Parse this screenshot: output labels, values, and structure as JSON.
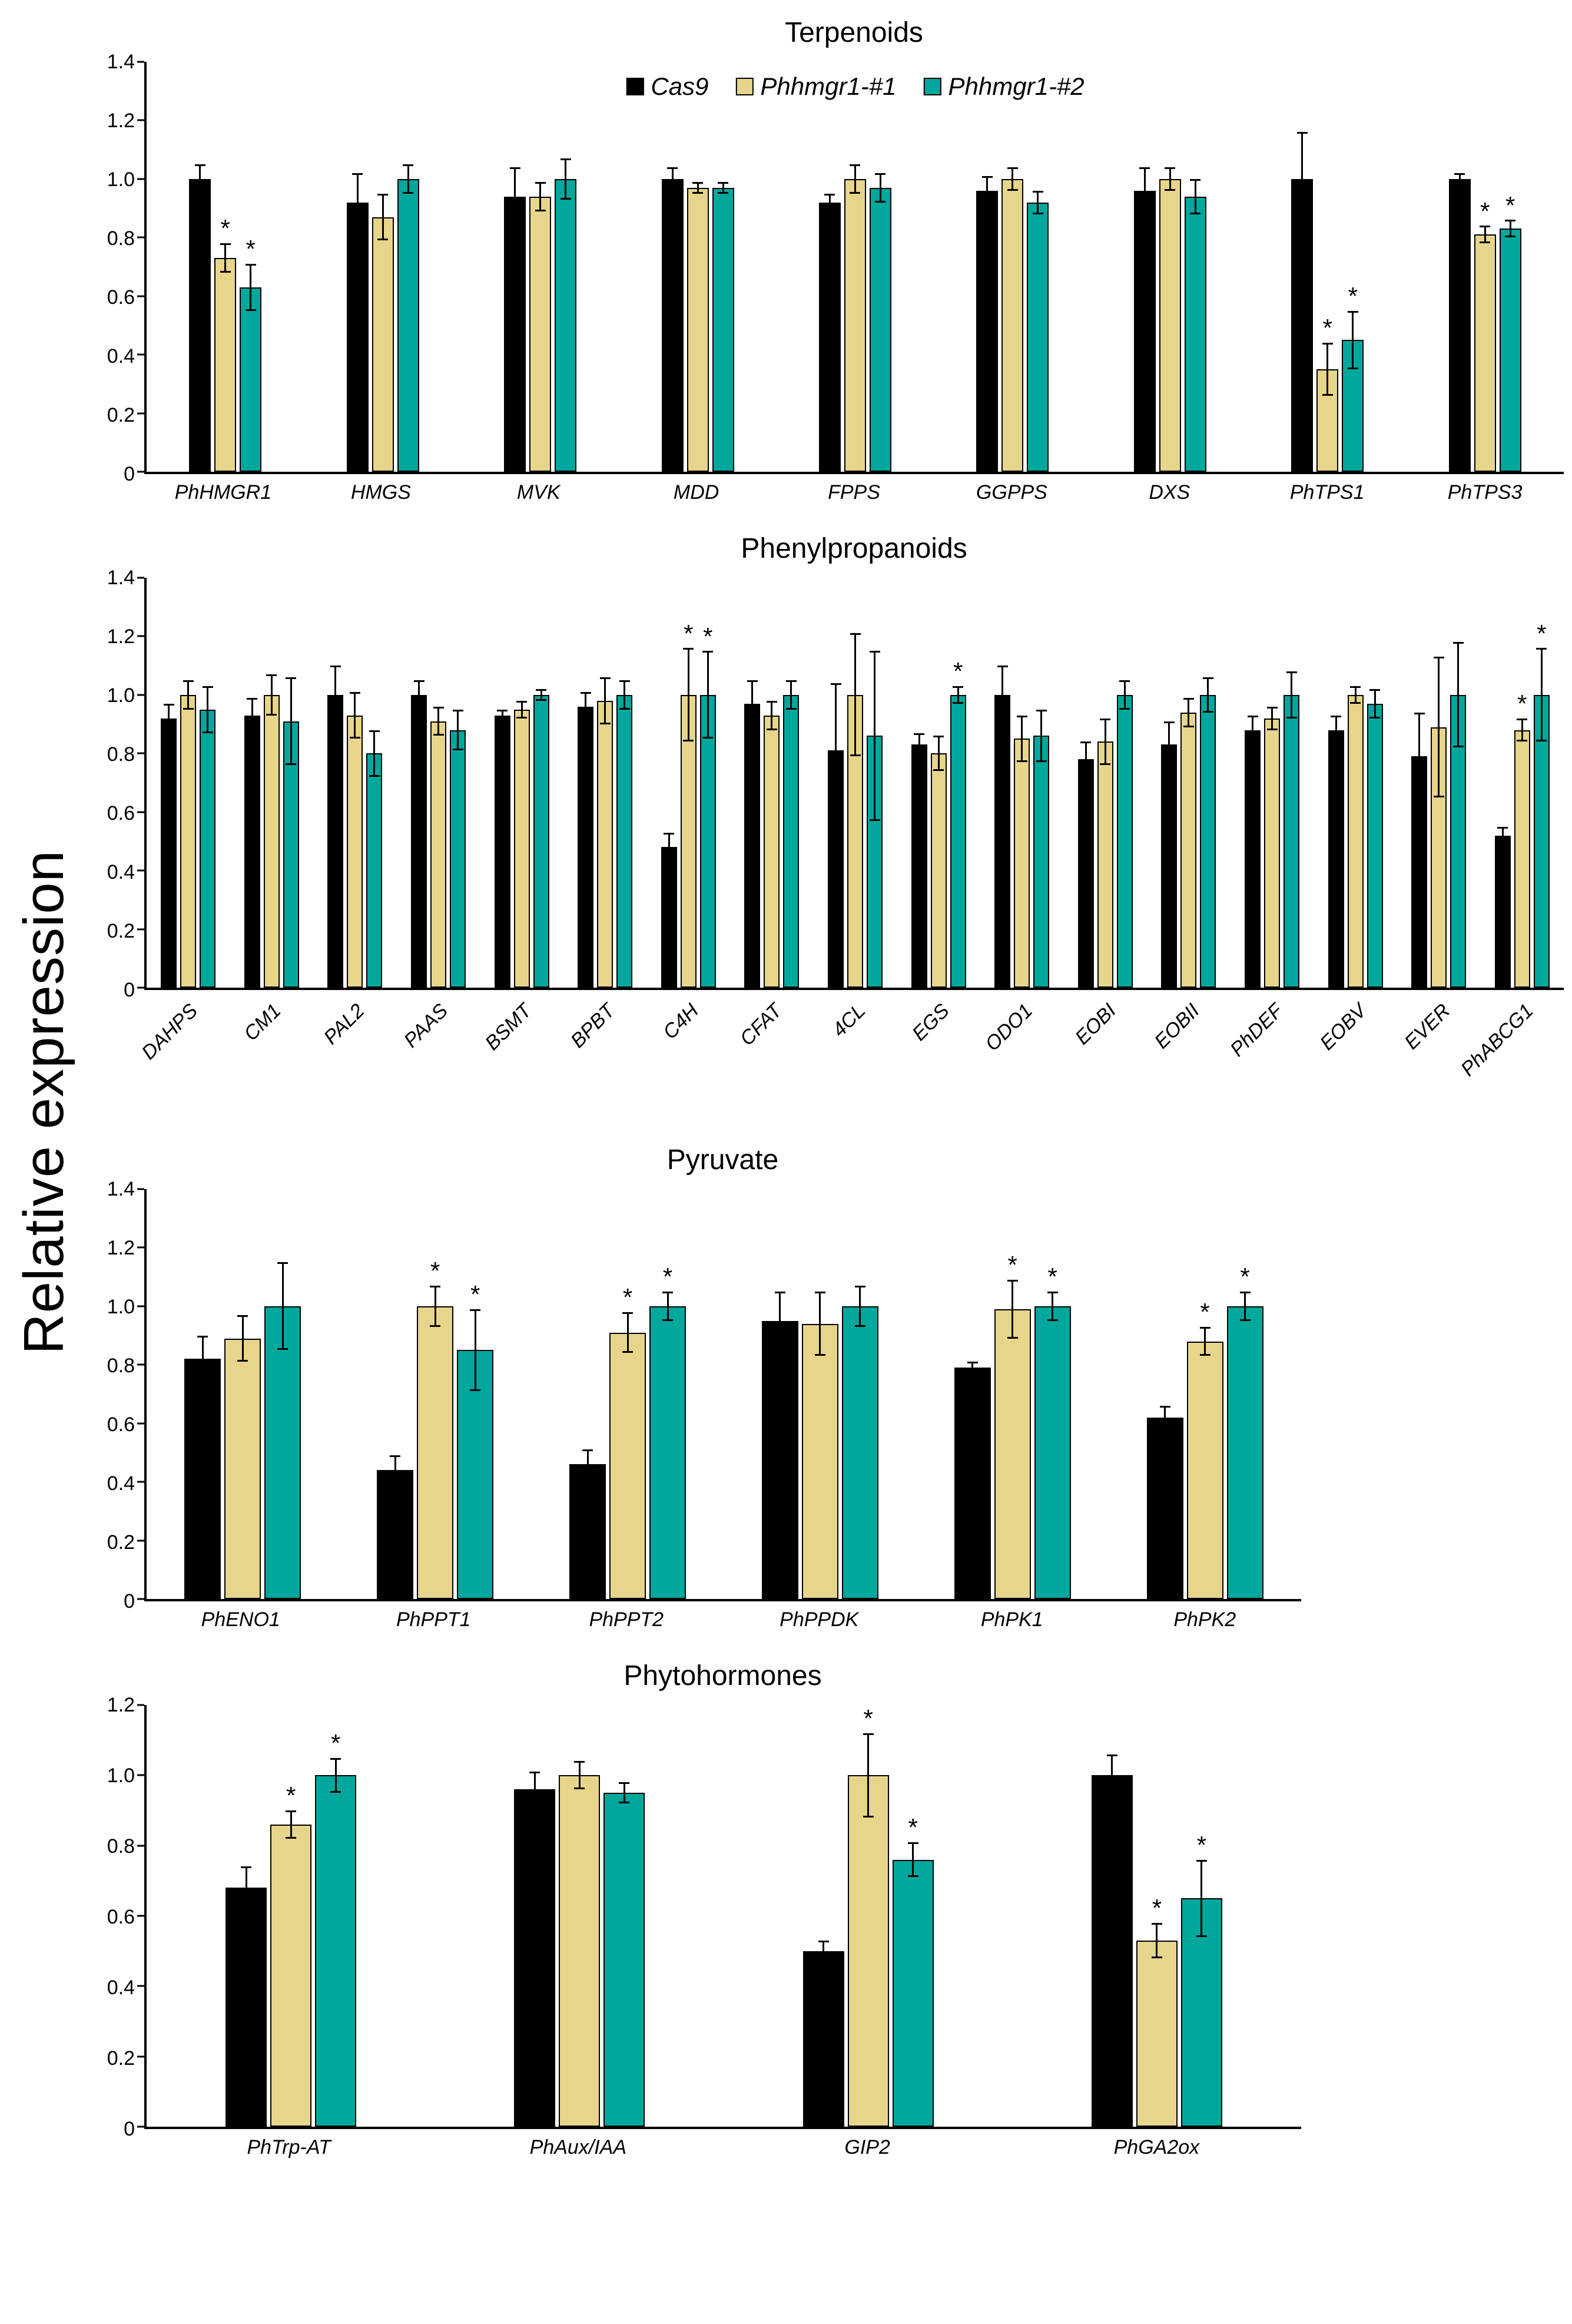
{
  "ylabel": "Relative expression",
  "series_colors": [
    "#000000",
    "#e7d58b",
    "#00a79c"
  ],
  "legend": {
    "items": [
      "Cas9",
      "Phhmgr1-#1",
      "Phhmgr1-#2"
    ]
  },
  "chart_data": [
    {
      "type": "bar",
      "title": "Terpenoids",
      "ylim": [
        0,
        1.4
      ],
      "ytick_step": 0.2,
      "legend": true,
      "legend_position": "top-center-inside",
      "grid": false,
      "categories": [
        "PhHMGR1",
        "HMGS",
        "MVK",
        "MDD",
        "FPPS",
        "GGPPS",
        "DXS",
        "PhTPS1",
        "PhTPS3"
      ],
      "series": [
        {
          "name": "Cas9",
          "values": [
            1.0,
            0.92,
            0.94,
            1.0,
            0.92,
            0.96,
            0.96,
            1.0,
            1.0
          ],
          "errors": [
            0.05,
            0.1,
            0.1,
            0.04,
            0.03,
            0.05,
            0.08,
            0.16,
            0.02
          ],
          "sig": [
            0,
            0,
            0,
            0,
            0,
            0,
            0,
            0,
            0
          ]
        },
        {
          "name": "Phhmgr1-#1",
          "values": [
            0.73,
            0.87,
            0.94,
            0.97,
            1.0,
            1.0,
            1.0,
            0.35,
            0.81
          ],
          "errors": [
            0.05,
            0.08,
            0.05,
            0.02,
            0.05,
            0.04,
            0.04,
            0.09,
            0.03
          ],
          "sig": [
            1,
            0,
            0,
            0,
            0,
            0,
            0,
            1,
            1
          ]
        },
        {
          "name": "Phhmgr1-#2",
          "values": [
            0.63,
            1.0,
            1.0,
            0.97,
            0.97,
            0.92,
            0.94,
            0.45,
            0.83
          ],
          "errors": [
            0.08,
            0.05,
            0.07,
            0.02,
            0.05,
            0.04,
            0.06,
            0.1,
            0.03
          ],
          "sig": [
            1,
            0,
            0,
            0,
            0,
            0,
            0,
            1,
            1
          ]
        }
      ]
    },
    {
      "type": "bar",
      "title": "Phenylpropanoids",
      "ylim": [
        0,
        1.4
      ],
      "ytick_step": 0.2,
      "legend": false,
      "grid": false,
      "xtick_rotation": 45,
      "categories": [
        "DAHPS",
        "CM1",
        "PAL2",
        "PAAS",
        "BSMT",
        "BPBT",
        "C4H",
        "CFAT",
        "4CL",
        "EGS",
        "ODO1",
        "EOBI",
        "EOBII",
        "PhDEF",
        "EOBV",
        "EVER",
        "PhABCG1"
      ],
      "series": [
        {
          "name": "Cas9",
          "values": [
            0.92,
            0.93,
            1.0,
            1.0,
            0.93,
            0.96,
            0.48,
            0.97,
            0.81,
            0.83,
            1.0,
            0.78,
            0.83,
            0.88,
            0.88,
            0.79,
            0.52
          ],
          "errors": [
            0.05,
            0.06,
            0.1,
            0.05,
            0.02,
            0.05,
            0.05,
            0.08,
            0.23,
            0.04,
            0.1,
            0.06,
            0.08,
            0.05,
            0.05,
            0.15,
            0.03
          ],
          "sig": [
            0,
            0,
            0,
            0,
            0,
            0,
            0,
            0,
            0,
            0,
            0,
            0,
            0,
            0,
            0,
            0,
            0
          ]
        },
        {
          "name": "Phhmgr1-#1",
          "values": [
            1.0,
            1.0,
            0.93,
            0.91,
            0.95,
            0.98,
            1.0,
            0.93,
            1.0,
            0.8,
            0.85,
            0.84,
            0.94,
            0.92,
            1.0,
            0.89,
            0.88
          ],
          "errors": [
            0.05,
            0.07,
            0.08,
            0.05,
            0.03,
            0.08,
            0.16,
            0.05,
            0.21,
            0.06,
            0.08,
            0.08,
            0.05,
            0.04,
            0.03,
            0.24,
            0.04
          ],
          "sig": [
            0,
            0,
            0,
            0,
            0,
            0,
            1,
            0,
            0,
            0,
            0,
            0,
            0,
            0,
            0,
            0,
            1
          ]
        },
        {
          "name": "Phhmgr1-#2",
          "values": [
            0.95,
            0.91,
            0.8,
            0.88,
            1.0,
            1.0,
            1.0,
            1.0,
            0.86,
            1.0,
            0.86,
            1.0,
            1.0,
            1.0,
            0.97,
            1.0,
            1.0
          ],
          "errors": [
            0.08,
            0.15,
            0.08,
            0.07,
            0.02,
            0.05,
            0.15,
            0.05,
            0.29,
            0.03,
            0.09,
            0.05,
            0.06,
            0.08,
            0.05,
            0.18,
            0.16
          ],
          "sig": [
            0,
            0,
            0,
            0,
            0,
            0,
            1,
            0,
            0,
            1,
            0,
            0,
            0,
            0,
            0,
            0,
            1
          ]
        }
      ]
    },
    {
      "type": "bar",
      "title": "Pyruvate",
      "ylim": [
        0,
        1.4
      ],
      "ytick_step": 0.2,
      "legend": false,
      "grid": false,
      "categories": [
        "PhENO1",
        "PhPPT1",
        "PhPPT2",
        "PhPPDK",
        "PhPK1",
        "PhPK2"
      ],
      "series": [
        {
          "name": "Cas9",
          "values": [
            0.82,
            0.44,
            0.46,
            0.95,
            0.79,
            0.62
          ],
          "errors": [
            0.08,
            0.05,
            0.05,
            0.1,
            0.02,
            0.04
          ],
          "sig": [
            0,
            0,
            0,
            0,
            0,
            0
          ]
        },
        {
          "name": "Phhmgr1-#1",
          "values": [
            0.89,
            1.0,
            0.91,
            0.94,
            0.99,
            0.88
          ],
          "errors": [
            0.08,
            0.07,
            0.07,
            0.11,
            0.1,
            0.05
          ],
          "sig": [
            0,
            1,
            1,
            0,
            1,
            1
          ]
        },
        {
          "name": "Phhmgr1-#2",
          "values": [
            1.0,
            0.85,
            1.0,
            1.0,
            1.0,
            1.0
          ],
          "errors": [
            0.15,
            0.14,
            0.05,
            0.07,
            0.05,
            0.05
          ],
          "sig": [
            0,
            1,
            1,
            0,
            1,
            1
          ]
        }
      ]
    },
    {
      "type": "bar",
      "title": "Phytohormones",
      "ylim": [
        0,
        1.2
      ],
      "ytick_step": 0.2,
      "legend": false,
      "grid": false,
      "categories": [
        "PhTrp-AT",
        "PhAux/IAA",
        "GIP2",
        "PhGA2ox"
      ],
      "series": [
        {
          "name": "Cas9",
          "values": [
            0.68,
            0.96,
            0.5,
            1.0
          ],
          "errors": [
            0.06,
            0.05,
            0.03,
            0.06
          ],
          "sig": [
            0,
            0,
            0,
            0
          ]
        },
        {
          "name": "Phhmgr1-#1",
          "values": [
            0.86,
            1.0,
            1.0,
            0.53
          ],
          "errors": [
            0.04,
            0.04,
            0.12,
            0.05
          ],
          "sig": [
            1,
            0,
            1,
            1
          ]
        },
        {
          "name": "Phhmgr1-#2",
          "values": [
            1.0,
            0.95,
            0.76,
            0.65
          ],
          "errors": [
            0.05,
            0.03,
            0.05,
            0.11
          ],
          "sig": [
            1,
            0,
            1,
            1
          ]
        }
      ]
    }
  ]
}
